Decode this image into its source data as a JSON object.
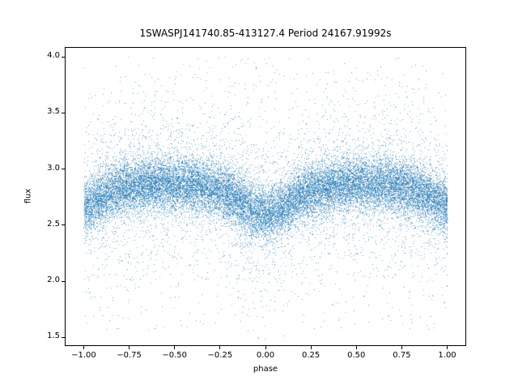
{
  "chart_data": {
    "type": "scatter",
    "title": "1SWASPJ141740.85-413127.4 Period 24167.91992s",
    "xlabel": "phase",
    "ylabel": "flux",
    "xlim": [
      -1.1,
      1.1
    ],
    "ylim": [
      1.43,
      4.08
    ],
    "xticks": [
      -1.0,
      -0.75,
      -0.5,
      -0.25,
      0.0,
      0.25,
      0.5,
      0.75,
      1.0
    ],
    "xtick_labels": [
      "−1.00",
      "−0.75",
      "−0.50",
      "−0.25",
      "0.00",
      "0.25",
      "0.50",
      "0.75",
      "1.00"
    ],
    "yticks": [
      1.5,
      2.0,
      2.5,
      3.0,
      3.5,
      4.0
    ],
    "ytick_labels": [
      "1.5",
      "2.0",
      "2.5",
      "3.0",
      "3.5",
      "4.0"
    ],
    "grid": false,
    "legend": null,
    "point_color": "#1f77b4",
    "point_count": 26000,
    "data_phase_range": [
      -1.0,
      1.0
    ],
    "trend": {
      "description": "mean flux of the dense band versus phase; eclipse-like dips at phase 0 and ±1",
      "phases": [
        -1.0,
        -0.95,
        -0.9,
        -0.85,
        -0.8,
        -0.7,
        -0.6,
        -0.5,
        -0.4,
        -0.3,
        -0.25,
        -0.2,
        -0.15,
        -0.1,
        -0.05,
        0.0,
        0.05,
        0.1,
        0.15,
        0.2,
        0.25,
        0.3,
        0.4,
        0.5,
        0.6,
        0.7,
        0.8,
        0.85,
        0.9,
        0.95,
        1.0
      ],
      "flux": [
        2.66,
        2.71,
        2.76,
        2.8,
        2.83,
        2.86,
        2.87,
        2.87,
        2.86,
        2.83,
        2.81,
        2.77,
        2.72,
        2.66,
        2.62,
        2.61,
        2.62,
        2.66,
        2.72,
        2.77,
        2.81,
        2.83,
        2.86,
        2.87,
        2.87,
        2.86,
        2.83,
        2.8,
        2.76,
        2.71,
        2.66
      ]
    },
    "scatter_model": {
      "core_fraction": 0.8,
      "core_sigma": 0.12,
      "tail_fraction": 0.17,
      "tail_sigma": 0.38,
      "uniform_fraction": 0.03,
      "uniform_flux_range": [
        1.55,
        4.0
      ],
      "clip_flux_range": [
        1.47,
        4.04
      ]
    }
  }
}
